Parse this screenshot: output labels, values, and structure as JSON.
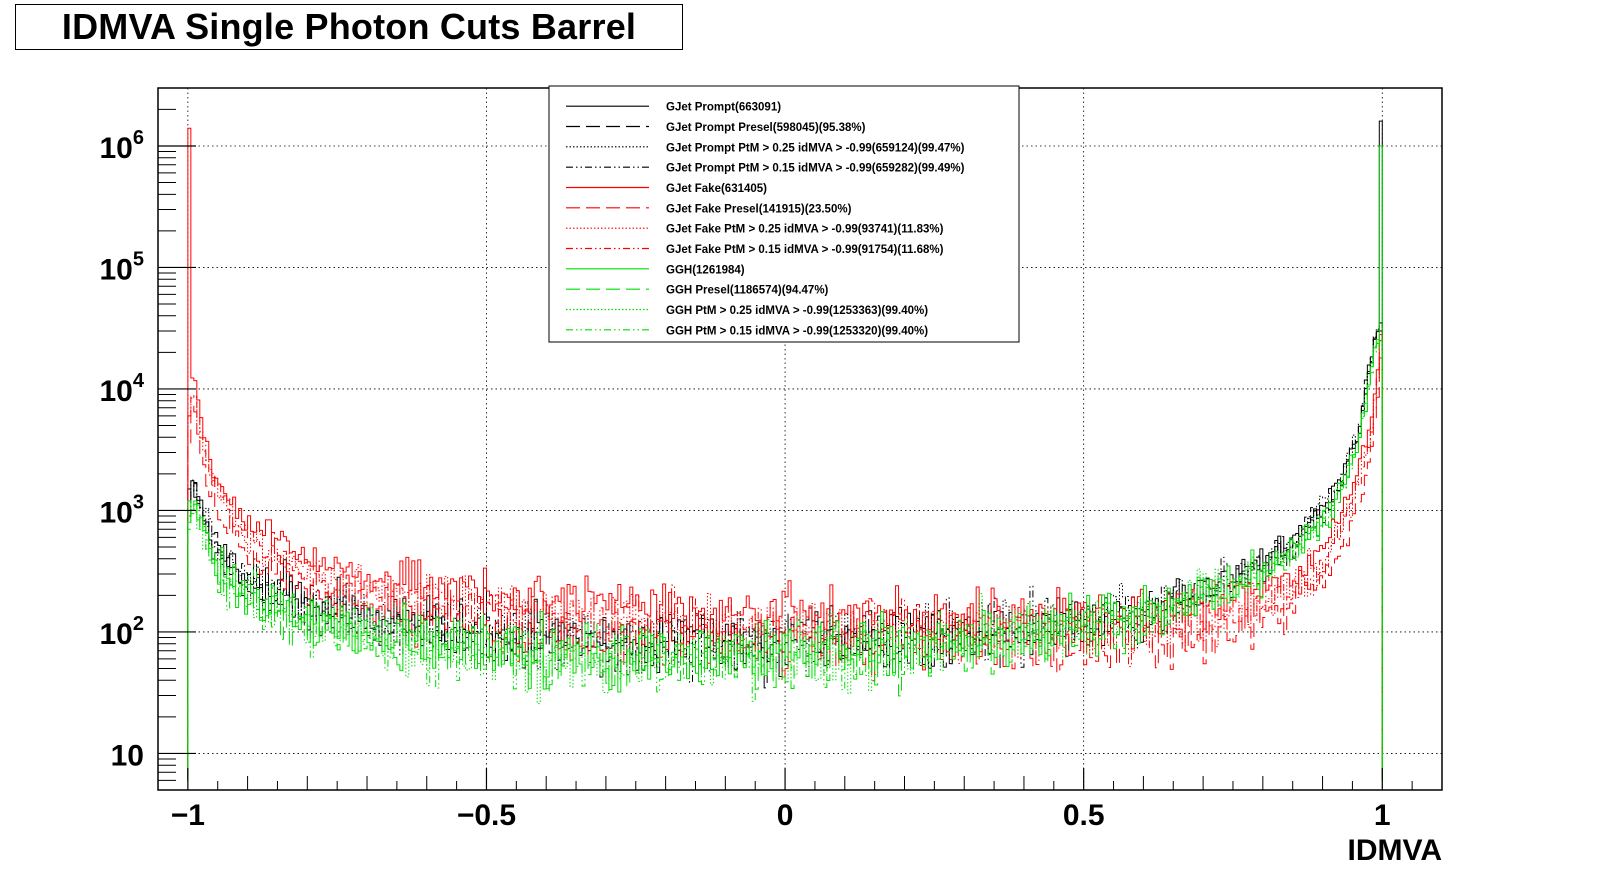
{
  "chart_data": {
    "type": "line",
    "title": "IDMVA Single Photon Cuts Barrel",
    "xlabel": "IDMVA",
    "ylabel": "",
    "xlim": [
      -1.05,
      1.1
    ],
    "ylim": [
      5,
      3000000
    ],
    "yscale": "log",
    "grid": true,
    "legend_position": "top-center",
    "x_ticks": [
      {
        "value": -1,
        "label": "−1"
      },
      {
        "value": -0.5,
        "label": "−0.5"
      },
      {
        "value": 0,
        "label": "0"
      },
      {
        "value": 0.5,
        "label": "0.5"
      },
      {
        "value": 1,
        "label": "1"
      }
    ],
    "y_ticks": [
      {
        "value": 10,
        "base": "10",
        "exp": ""
      },
      {
        "value": 100,
        "base": "10",
        "exp": "2"
      },
      {
        "value": 1000,
        "base": "10",
        "exp": "3"
      },
      {
        "value": 10000,
        "base": "10",
        "exp": "4"
      },
      {
        "value": 100000,
        "base": "10",
        "exp": "5"
      },
      {
        "value": 1000000,
        "base": "10",
        "exp": "6"
      }
    ],
    "series": [
      {
        "name": "GJet Prompt(663091)",
        "color": "#000000",
        "dash": "",
        "kind": "prompt",
        "level": 1.0,
        "spike_low": 1500,
        "spike_high": 1600000
      },
      {
        "name": "GJet Prompt Presel(598045)(95.38%)",
        "color": "#000000",
        "dash": "14,6",
        "kind": "prompt",
        "level": 0.95,
        "spike_low": 1100,
        "spike_high": 30000
      },
      {
        "name": "GJet Prompt PtM > 0.25 idMVA > -0.99(659124)(99.47%)",
        "color": "#000000",
        "dash": "1.5,2",
        "kind": "prompt",
        "level": 0.995,
        "spike_low": 900,
        "spike_high": 35000
      },
      {
        "name": "GJet Prompt PtM > 0.15 idMVA > -0.99(659282)(99.49%)",
        "color": "#000000",
        "dash": "7,3,1.5,3,1.5,3",
        "kind": "prompt",
        "level": 0.995,
        "spike_low": 900,
        "spike_high": 35000
      },
      {
        "name": "GJet Fake(631405)",
        "color": "#ff0000",
        "dash": "",
        "kind": "fake",
        "level": 1.0,
        "spike_low": 1400000,
        "spike_high": 28000
      },
      {
        "name": "GJet Fake Presel(141915)(23.50%)",
        "color": "#ff0000",
        "dash": "14,6",
        "kind": "fake",
        "level": 0.55,
        "spike_low": 3500,
        "spike_high": 18000
      },
      {
        "name": "GJet Fake PtM > 0.25 idMVA > -0.99(93741)(11.83%)",
        "color": "#ff0000",
        "dash": "1.5,2",
        "kind": "fake",
        "level": 0.75,
        "spike_low": 6000,
        "spike_high": 25000
      },
      {
        "name": "GJet Fake PtM > 0.15 idMVA > -0.99(91754)(11.68%)",
        "color": "#ff0000",
        "dash": "7,3,1.5,3,1.5,3",
        "kind": "fake",
        "level": 0.74,
        "spike_low": 6000,
        "spike_high": 25000
      },
      {
        "name": "GGH(1261984)",
        "color": "#00dd00",
        "dash": "",
        "kind": "ggh",
        "level": 1.0,
        "spike_low": 1200,
        "spike_high": 1000000
      },
      {
        "name": "GGH Presel(1186574)(94.47%)",
        "color": "#00dd00",
        "dash": "14,6",
        "kind": "ggh",
        "level": 0.95,
        "spike_low": 700,
        "spike_high": 20000
      },
      {
        "name": "GGH PtM > 0.25 idMVA > -0.99(1253363)(99.40%)",
        "color": "#00dd00",
        "dash": "1.5,2",
        "kind": "ggh",
        "level": 0.99,
        "spike_low": 800,
        "spike_high": 25000
      },
      {
        "name": "GGH PtM > 0.15 idMVA > -0.99(1253320)(99.40%)",
        "color": "#00dd00",
        "dash": "7,3,1.5,3,1.5,3",
        "kind": "ggh",
        "level": 0.99,
        "spike_low": 800,
        "spike_high": 25000
      }
    ],
    "shape_anchors": {
      "prompt": [
        [
          -0.99,
          1500
        ],
        [
          -0.95,
          450
        ],
        [
          -0.9,
          280
        ],
        [
          -0.8,
          170
        ],
        [
          -0.6,
          110
        ],
        [
          -0.4,
          90
        ],
        [
          -0.2,
          82
        ],
        [
          0.0,
          85
        ],
        [
          0.2,
          90
        ],
        [
          0.4,
          105
        ],
        [
          0.6,
          150
        ],
        [
          0.75,
          260
        ],
        [
          0.85,
          550
        ],
        [
          0.92,
          1400
        ],
        [
          0.96,
          4500
        ],
        [
          0.99,
          30000
        ]
      ],
      "fake": [
        [
          -0.99,
          12000
        ],
        [
          -0.97,
          3500
        ],
        [
          -0.95,
          1800
        ],
        [
          -0.9,
          800
        ],
        [
          -0.8,
          420
        ],
        [
          -0.7,
          300
        ],
        [
          -0.6,
          250
        ],
        [
          -0.5,
          210
        ],
        [
          -0.3,
          175
        ],
        [
          -0.1,
          150
        ],
        [
          0.1,
          140
        ],
        [
          0.3,
          135
        ],
        [
          0.5,
          140
        ],
        [
          0.65,
          155
        ],
        [
          0.8,
          220
        ],
        [
          0.9,
          480
        ],
        [
          0.95,
          1500
        ],
        [
          0.98,
          5000
        ],
        [
          0.995,
          20000
        ]
      ],
      "ggh": [
        [
          -0.99,
          1100
        ],
        [
          -0.95,
          320
        ],
        [
          -0.9,
          200
        ],
        [
          -0.8,
          120
        ],
        [
          -0.6,
          80
        ],
        [
          -0.4,
          65
        ],
        [
          -0.2,
          62
        ],
        [
          0.0,
          65
        ],
        [
          0.2,
          75
        ],
        [
          0.4,
          95
        ],
        [
          0.6,
          140
        ],
        [
          0.75,
          230
        ],
        [
          0.85,
          450
        ],
        [
          0.92,
          1100
        ],
        [
          0.96,
          3500
        ],
        [
          0.99,
          25000
        ]
      ]
    }
  }
}
